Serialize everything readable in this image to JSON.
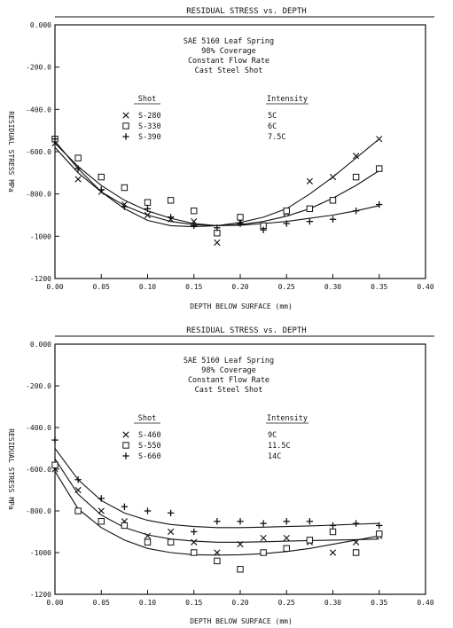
{
  "chart_data": [
    {
      "type": "scatter",
      "title": "RESIDUAL STRESS vs. DEPTH",
      "xlabel": "DEPTH BELOW SURFACE (mm)",
      "ylabel": "RESIDUAL STRESS MPa",
      "xlim": [
        0.0,
        0.4
      ],
      "ylim": [
        -1200,
        0
      ],
      "xticks": [
        "0.00",
        "0.05",
        "0.10",
        "0.15",
        "0.20",
        "0.25",
        "0.30",
        "0.35",
        "0.40"
      ],
      "yticks": [
        "0.000",
        "-200.0",
        "-400.0",
        "-600.0",
        "-800.0",
        "-1000",
        "-1200"
      ],
      "annotation": [
        "SAE 5160 Leaf Spring",
        "98% Coverage",
        "Constant Flow Rate",
        "Cast Steel Shot"
      ],
      "legend_headers": {
        "shot": "Shot",
        "intensity": "Intensity"
      },
      "grid": false,
      "legend_position": "top-center",
      "series": [
        {
          "name": "S-280",
          "intensity": "5C",
          "marker": "x",
          "x": [
            0.0,
            0.025,
            0.05,
            0.075,
            0.1,
            0.125,
            0.15,
            0.175,
            0.2,
            0.225,
            0.25,
            0.275,
            0.3,
            0.325,
            0.35
          ],
          "y": [
            -560,
            -730,
            -790,
            -850,
            -900,
            -920,
            -930,
            -1030,
            -930,
            -950,
            -890,
            -740,
            -720,
            -620,
            -540
          ],
          "fit": [
            -550,
            -680,
            -790,
            -870,
            -925,
            -950,
            -955,
            -950,
            -935,
            -910,
            -870,
            -800,
            -720,
            -630,
            -540
          ]
        },
        {
          "name": "S-330",
          "intensity": "6C",
          "marker": "square",
          "x": [
            0.0,
            0.025,
            0.05,
            0.075,
            0.1,
            0.125,
            0.15,
            0.175,
            0.2,
            0.225,
            0.25,
            0.275,
            0.3,
            0.325,
            0.35
          ],
          "y": [
            -540,
            -630,
            -720,
            -770,
            -840,
            -830,
            -880,
            -985,
            -910,
            -950,
            -880,
            -870,
            -830,
            -720,
            -680
          ],
          "fit": [
            -560,
            -670,
            -760,
            -830,
            -880,
            -915,
            -940,
            -950,
            -945,
            -930,
            -905,
            -870,
            -820,
            -760,
            -690
          ]
        },
        {
          "name": "S-390",
          "intensity": "7.5C",
          "marker": "plus",
          "x": [
            0.0,
            0.025,
            0.05,
            0.075,
            0.1,
            0.125,
            0.15,
            0.175,
            0.2,
            0.225,
            0.25,
            0.275,
            0.3,
            0.325,
            0.35
          ],
          "y": [
            -540,
            -680,
            -780,
            -860,
            -870,
            -910,
            -950,
            -960,
            -940,
            -970,
            -940,
            -930,
            -920,
            -880,
            -850
          ],
          "fit": [
            -580,
            -700,
            -790,
            -855,
            -900,
            -930,
            -945,
            -950,
            -948,
            -940,
            -930,
            -915,
            -900,
            -880,
            -855
          ]
        }
      ]
    },
    {
      "type": "scatter",
      "title": "RESIDUAL STRESS vs. DEPTH",
      "xlabel": "DEPTH BELOW SURFACE (mm)",
      "ylabel": "RESIDUAL STRESS MPa",
      "xlim": [
        0.0,
        0.4
      ],
      "ylim": [
        -1200,
        0
      ],
      "xticks": [
        "0.00",
        "0.05",
        "0.10",
        "0.15",
        "0.20",
        "0.25",
        "0.30",
        "0.35",
        "0.40"
      ],
      "yticks": [
        "0.000",
        "-200.0",
        "-400.0",
        "-600.0",
        "-800.0",
        "-1000",
        "-1200"
      ],
      "annotation": [
        "SAE 5160 Leaf Spring",
        "98% Coverage",
        "Constant Flow Rate",
        "Cast Steel Shot"
      ],
      "legend_headers": {
        "shot": "Shot",
        "intensity": "Intensity"
      },
      "grid": false,
      "legend_position": "top-center",
      "series": [
        {
          "name": "S-460",
          "intensity": "9C",
          "marker": "x",
          "x": [
            0.0,
            0.025,
            0.05,
            0.075,
            0.1,
            0.125,
            0.15,
            0.175,
            0.2,
            0.225,
            0.25,
            0.275,
            0.3,
            0.325,
            0.35
          ],
          "y": [
            -600,
            -700,
            -800,
            -850,
            -920,
            -900,
            -950,
            -1000,
            -960,
            -930,
            -930,
            -950,
            -1000,
            -950,
            -920
          ],
          "fit": [
            -550,
            -720,
            -820,
            -880,
            -915,
            -935,
            -945,
            -950,
            -950,
            -948,
            -945,
            -942,
            -940,
            -938,
            -935
          ]
        },
        {
          "name": "S-550",
          "intensity": "11.5C",
          "marker": "square",
          "x": [
            0.0,
            0.025,
            0.05,
            0.075,
            0.1,
            0.125,
            0.15,
            0.175,
            0.2,
            0.225,
            0.25,
            0.275,
            0.3,
            0.325,
            0.35
          ],
          "y": [
            -580,
            -800,
            -850,
            -870,
            -950,
            -950,
            -1000,
            -1040,
            -1080,
            -1000,
            -980,
            -940,
            -900,
            -1000,
            -910
          ],
          "fit": [
            -610,
            -790,
            -880,
            -940,
            -980,
            -1000,
            -1010,
            -1012,
            -1010,
            -1005,
            -995,
            -980,
            -960,
            -940,
            -920
          ]
        },
        {
          "name": "S-660",
          "intensity": "14C",
          "marker": "plus",
          "x": [
            0.0,
            0.025,
            0.05,
            0.075,
            0.1,
            0.125,
            0.15,
            0.175,
            0.2,
            0.225,
            0.25,
            0.275,
            0.3,
            0.325,
            0.35
          ],
          "y": [
            -460,
            -650,
            -740,
            -780,
            -800,
            -810,
            -900,
            -850,
            -850,
            -860,
            -850,
            -850,
            -870,
            -860,
            -870
          ],
          "fit": [
            -500,
            -650,
            -750,
            -810,
            -845,
            -865,
            -875,
            -880,
            -880,
            -878,
            -875,
            -872,
            -868,
            -864,
            -860
          ]
        }
      ]
    }
  ]
}
